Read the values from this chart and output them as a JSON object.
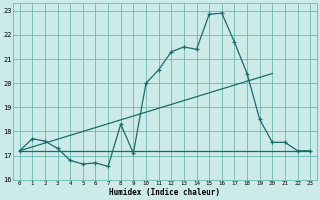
{
  "xlabel": "Humidex (Indice chaleur)",
  "bg_color": "#cceae8",
  "grid_color": "#5aadaa",
  "line_color": "#1a6b6b",
  "xlim": [
    -0.5,
    23.5
  ],
  "ylim": [
    16,
    23.3
  ],
  "xticks": [
    0,
    1,
    2,
    3,
    4,
    5,
    6,
    7,
    8,
    9,
    10,
    11,
    12,
    13,
    14,
    15,
    16,
    17,
    18,
    19,
    20,
    21,
    22,
    23
  ],
  "yticks": [
    16,
    17,
    18,
    19,
    20,
    21,
    22,
    23
  ],
  "line1_x": [
    0,
    1,
    2,
    3,
    4,
    5,
    6,
    7,
    8,
    9,
    10,
    11,
    12,
    13,
    14,
    15,
    16,
    17,
    18,
    19,
    20,
    21,
    22,
    23
  ],
  "line1_y": [
    17.2,
    17.7,
    17.6,
    17.3,
    16.8,
    16.65,
    16.7,
    16.55,
    18.3,
    17.1,
    20.0,
    20.55,
    21.3,
    21.5,
    21.4,
    22.85,
    22.9,
    21.7,
    20.4,
    18.5,
    17.55,
    17.55,
    17.2,
    17.2
  ],
  "line2_x": [
    0,
    20
  ],
  "line2_y": [
    17.2,
    20.4
  ],
  "line3_x": [
    0,
    23
  ],
  "line3_y": [
    17.2,
    17.2
  ]
}
